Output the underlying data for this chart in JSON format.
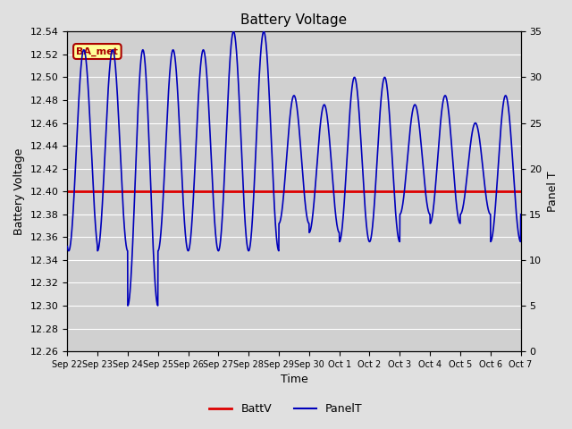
{
  "title": "Battery Voltage",
  "xlabel": "Time",
  "ylabel_left": "Battery Voltage",
  "ylabel_right": "Panel T",
  "ylim_left": [
    12.26,
    12.54
  ],
  "ylim_right": [
    0,
    35
  ],
  "yticks_left": [
    12.26,
    12.28,
    12.3,
    12.32,
    12.34,
    12.36,
    12.38,
    12.4,
    12.42,
    12.44,
    12.46,
    12.48,
    12.5,
    12.52,
    12.54
  ],
  "yticks_right": [
    0,
    5,
    10,
    15,
    20,
    25,
    30,
    35
  ],
  "xtick_labels": [
    "Sep 22",
    "Sep 23",
    "Sep 24",
    "Sep 25",
    "Sep 26",
    "Sep 27",
    "Sep 28",
    "Sep 29",
    "Sep 30",
    "Oct 1",
    "Oct 2",
    "Oct 3",
    "Oct 4",
    "Oct 5",
    "Oct 6",
    "Oct 7"
  ],
  "battv_value": 12.4,
  "battv_color": "#dd0000",
  "panelt_color": "#0000bb",
  "background_color": "#e0e0e0",
  "plot_bg_color": "#d0d0d0",
  "grid_color": "#bbbbbb",
  "legend_battv": "BattV",
  "legend_panelt": "PanelT",
  "watermark_text": "BA_met",
  "watermark_bg": "#ffff99",
  "watermark_border": "#aa0000",
  "watermark_text_color": "#aa0000",
  "n_days": 15,
  "figsize": [
    6.4,
    4.8
  ],
  "dpi": 100
}
